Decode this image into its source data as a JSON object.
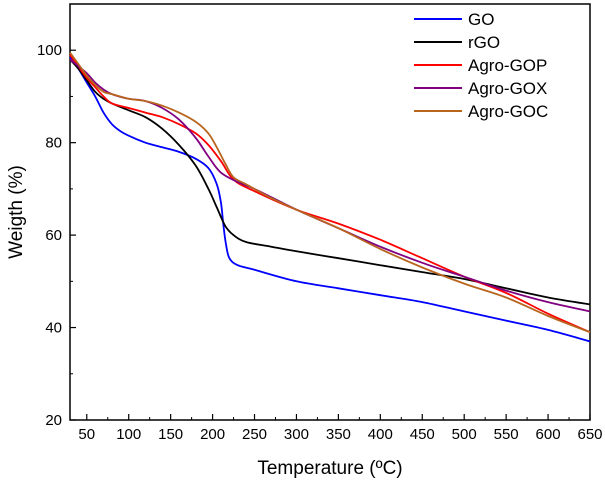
{
  "chart_data": {
    "type": "line",
    "title": "",
    "xlabel": "Temperature (ºC)",
    "ylabel": "Weigth (%)",
    "xlim": [
      30,
      650
    ],
    "ylim": [
      20,
      110
    ],
    "xticks": [
      50,
      100,
      150,
      200,
      250,
      300,
      350,
      400,
      450,
      500,
      550,
      600,
      650
    ],
    "yticks": [
      20,
      40,
      60,
      80,
      100
    ],
    "legend_position": "top-right",
    "series": [
      {
        "name": "GO",
        "color": "#0000ff",
        "points": [
          [
            30,
            98.5
          ],
          [
            40,
            96
          ],
          [
            50,
            93
          ],
          [
            60,
            90
          ],
          [
            70,
            86.5
          ],
          [
            80,
            84
          ],
          [
            90,
            82.5
          ],
          [
            100,
            81.5
          ],
          [
            120,
            80
          ],
          [
            140,
            79
          ],
          [
            160,
            78
          ],
          [
            180,
            76.5
          ],
          [
            195,
            74.5
          ],
          [
            205,
            71
          ],
          [
            210,
            67
          ],
          [
            213,
            62
          ],
          [
            216,
            58
          ],
          [
            220,
            55
          ],
          [
            230,
            53.5
          ],
          [
            250,
            52.5
          ],
          [
            300,
            50
          ],
          [
            350,
            48.5
          ],
          [
            400,
            47
          ],
          [
            450,
            45.5
          ],
          [
            500,
            43.5
          ],
          [
            550,
            41.5
          ],
          [
            600,
            39.5
          ],
          [
            650,
            37
          ]
        ]
      },
      {
        "name": "rGO",
        "color": "#000000",
        "points": [
          [
            30,
            98
          ],
          [
            40,
            96
          ],
          [
            50,
            93.5
          ],
          [
            60,
            91
          ],
          [
            70,
            89.5
          ],
          [
            80,
            88.5
          ],
          [
            100,
            87
          ],
          [
            120,
            85.5
          ],
          [
            140,
            83
          ],
          [
            160,
            79.5
          ],
          [
            180,
            75
          ],
          [
            195,
            70
          ],
          [
            205,
            66
          ],
          [
            215,
            62
          ],
          [
            225,
            60
          ],
          [
            240,
            58.5
          ],
          [
            270,
            57.5
          ],
          [
            300,
            56.5
          ],
          [
            350,
            55
          ],
          [
            400,
            53.5
          ],
          [
            450,
            52
          ],
          [
            500,
            50.5
          ],
          [
            550,
            48.5
          ],
          [
            600,
            46.5
          ],
          [
            650,
            45
          ]
        ]
      },
      {
        "name": "Agro-GOP",
        "color": "#ff0000",
        "points": [
          [
            30,
            99
          ],
          [
            40,
            96.5
          ],
          [
            50,
            94
          ],
          [
            60,
            92
          ],
          [
            70,
            90
          ],
          [
            80,
            88.5
          ],
          [
            100,
            87.5
          ],
          [
            120,
            86.5
          ],
          [
            140,
            85.5
          ],
          [
            160,
            84
          ],
          [
            180,
            82
          ],
          [
            195,
            79.5
          ],
          [
            210,
            76
          ],
          [
            225,
            72
          ],
          [
            250,
            69.5
          ],
          [
            300,
            65.5
          ],
          [
            350,
            62.5
          ],
          [
            400,
            59
          ],
          [
            450,
            55
          ],
          [
            500,
            51
          ],
          [
            550,
            47.5
          ],
          [
            600,
            43
          ],
          [
            650,
            39
          ]
        ]
      },
      {
        "name": "Agro-GOX",
        "color": "#800080",
        "points": [
          [
            30,
            98
          ],
          [
            40,
            96.5
          ],
          [
            50,
            95
          ],
          [
            60,
            93
          ],
          [
            70,
            91.5
          ],
          [
            80,
            90.5
          ],
          [
            100,
            89.5
          ],
          [
            120,
            89
          ],
          [
            140,
            87.5
          ],
          [
            160,
            85
          ],
          [
            180,
            81
          ],
          [
            195,
            77
          ],
          [
            210,
            73.5
          ],
          [
            230,
            71.5
          ],
          [
            250,
            70
          ],
          [
            300,
            65.5
          ],
          [
            350,
            61.5
          ],
          [
            400,
            57.5
          ],
          [
            450,
            54
          ],
          [
            500,
            51
          ],
          [
            550,
            48
          ],
          [
            600,
            45.5
          ],
          [
            650,
            43.5
          ]
        ]
      },
      {
        "name": "Agro-GOC",
        "color": "#b8651e",
        "points": [
          [
            30,
            99.5
          ],
          [
            40,
            97
          ],
          [
            50,
            94.5
          ],
          [
            60,
            92.5
          ],
          [
            70,
            91
          ],
          [
            80,
            90.5
          ],
          [
            100,
            89.5
          ],
          [
            120,
            89
          ],
          [
            140,
            88
          ],
          [
            160,
            86.5
          ],
          [
            180,
            84.5
          ],
          [
            195,
            82
          ],
          [
            205,
            79
          ],
          [
            215,
            75.5
          ],
          [
            225,
            72.5
          ],
          [
            240,
            71
          ],
          [
            270,
            68
          ],
          [
            300,
            65.5
          ],
          [
            350,
            61.5
          ],
          [
            400,
            57
          ],
          [
            450,
            53
          ],
          [
            500,
            49.5
          ],
          [
            550,
            46.5
          ],
          [
            600,
            42.5
          ],
          [
            650,
            39
          ]
        ]
      }
    ]
  }
}
